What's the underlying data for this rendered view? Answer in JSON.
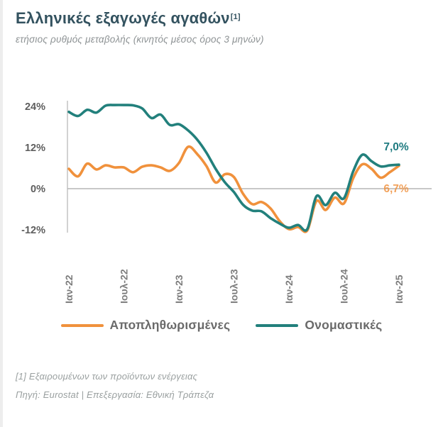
{
  "header": {
    "title": "Ελληνικές εξαγωγές αγαθών",
    "title_superscript": "[1]",
    "subtitle": "ετήσιος ρυθμός μεταβολής (κινητός μέσος όρος 3 μηνών)"
  },
  "chart_data": {
    "type": "line",
    "frequency": "monthly",
    "x_start": "Ιαν-22",
    "x_end": "Ιαν-25",
    "x_tick_labels": [
      "Ιαν-22",
      "Ιουλ-22",
      "Ιαν-23",
      "Ιουλ-23",
      "Ιαν-24",
      "Ιουλ-24",
      "Ιαν-25"
    ],
    "x_tick_every_n_months": 6,
    "yticks": [
      {
        "label": "24%",
        "value": 24
      },
      {
        "label": "12%",
        "value": 12
      },
      {
        "label": "0%",
        "value": 0
      },
      {
        "label": "-12%",
        "value": -12
      }
    ],
    "ylim": [
      -14,
      26
    ],
    "grid": "zero-line-only",
    "series": [
      {
        "name": "Αποπληθωρισμένες",
        "color": "#f0913c",
        "values": [
          5.8,
          3.6,
          7.3,
          5.6,
          6.8,
          6.2,
          6.2,
          4.8,
          6.4,
          6.8,
          6.2,
          5.2,
          7.5,
          12.2,
          10.1,
          6.6,
          1.8,
          4.2,
          3.4,
          -1.5,
          -4.5,
          -3.9,
          -5.8,
          -9.5,
          -11.8,
          -11.2,
          -12.2,
          -3.6,
          -6.2,
          -2.6,
          -4.3,
          3.0,
          7.1,
          5.8,
          3.2,
          4.8,
          6.7
        ]
      },
      {
        "name": "Ονομαστικές",
        "color": "#22807c",
        "values": [
          22.4,
          21.2,
          23.0,
          22.2,
          24.2,
          24.4,
          24.4,
          24.3,
          23.4,
          20.6,
          21.6,
          18.6,
          18.8,
          17.0,
          14.3,
          10.5,
          5.8,
          1.9,
          -1.0,
          -4.7,
          -6.4,
          -6.6,
          -8.6,
          -10.2,
          -11.4,
          -10.6,
          -11.8,
          -2.2,
          -4.8,
          -1.2,
          -2.8,
          5.0,
          9.9,
          8.0,
          6.5,
          6.8,
          7.0
        ]
      }
    ],
    "end_labels": [
      {
        "text": "7,0%",
        "series": "Ονομαστικές",
        "color": "#1f7b80"
      },
      {
        "text": "6,7%",
        "series": "Αποπληθωρισμένες",
        "color": "#f0923f"
      }
    ],
    "title": "Ελληνικές εξαγωγές αγαθών [1]",
    "xlabel": "",
    "ylabel": ""
  },
  "legend": {
    "items": [
      {
        "label": "Αποπληθωρισμένες",
        "color": "#f0913c"
      },
      {
        "label": "Ονομαστικές",
        "color": "#22807c"
      }
    ]
  },
  "footnotes": {
    "note1": "[1] Εξαιρουμένων των προϊόντων ενέργειας",
    "source": "Πηγή: Eurostat | Επεξεργασία: Εθνική Τράπεζα"
  }
}
